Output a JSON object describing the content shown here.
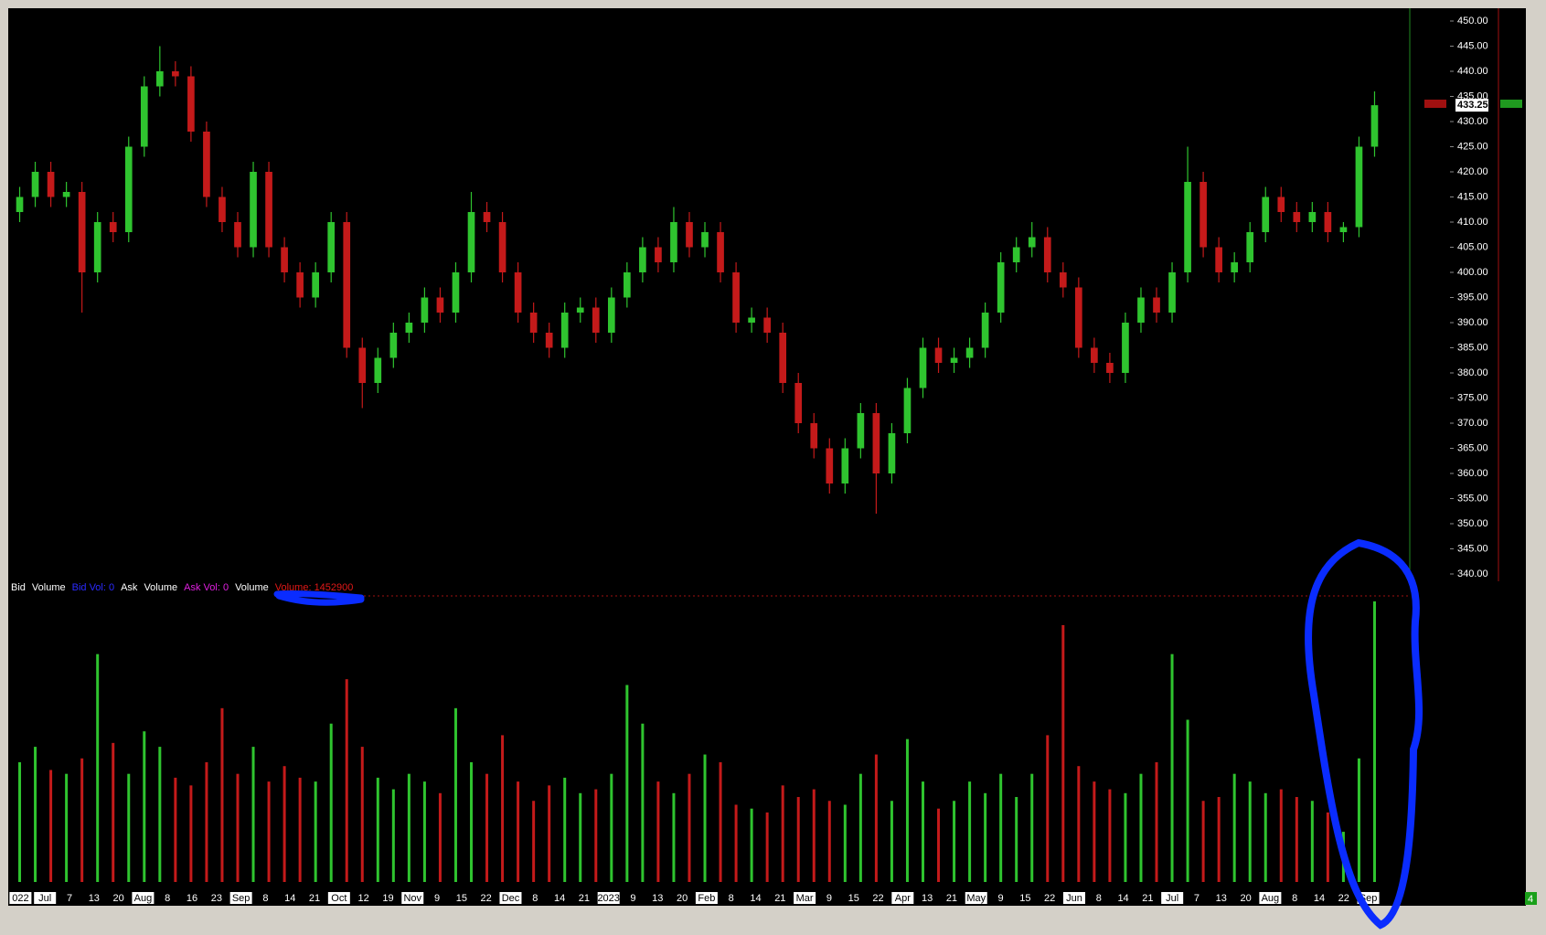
{
  "chart_data": {
    "type": "candlestick",
    "up_color": "#2fc42f",
    "down_color": "#c41a1a",
    "ylim": [
      340,
      450
    ],
    "yticks": [
      {
        "value": 340,
        "label": "340.00"
      },
      {
        "value": 345,
        "label": "345.00"
      },
      {
        "value": 350,
        "label": "350.00"
      },
      {
        "value": 355,
        "label": "355.00"
      },
      {
        "value": 360,
        "label": "360.00"
      },
      {
        "value": 365,
        "label": "365.00"
      },
      {
        "value": 370,
        "label": "370.00"
      },
      {
        "value": 375,
        "label": "375.00"
      },
      {
        "value": 380,
        "label": "380.00"
      },
      {
        "value": 385,
        "label": "385.00"
      },
      {
        "value": 390,
        "label": "390.00"
      },
      {
        "value": 395,
        "label": "395.00"
      },
      {
        "value": 400,
        "label": "400.00"
      },
      {
        "value": 405,
        "label": "405.00"
      },
      {
        "value": 410,
        "label": "410.00"
      },
      {
        "value": 415,
        "label": "415.00"
      },
      {
        "value": 420,
        "label": "420.00"
      },
      {
        "value": 425,
        "label": "425.00"
      },
      {
        "value": 430,
        "label": "430.00"
      },
      {
        "value": 435,
        "label": "435.00"
      },
      {
        "value": 440,
        "label": "440.00"
      },
      {
        "value": 445,
        "label": "445.00"
      },
      {
        "value": 450,
        "label": "450.00"
      }
    ],
    "last_price": 433.25,
    "xticklabels": [
      "022",
      "Jul",
      "7",
      "13",
      "20",
      "Aug",
      "8",
      "16",
      "23",
      "Sep",
      "8",
      "14",
      "21",
      "Oct",
      "12",
      "19",
      "Nov",
      "9",
      "15",
      "22",
      "Dec",
      "8",
      "14",
      "21",
      "2023",
      "9",
      "13",
      "20",
      "Feb",
      "8",
      "14",
      "21",
      "Mar",
      "9",
      "15",
      "22",
      "Apr",
      "13",
      "21",
      "May",
      "9",
      "15",
      "22",
      "Jun",
      "8",
      "14",
      "21",
      "Jul",
      "7",
      "13",
      "20",
      "Aug",
      "8",
      "14",
      "22",
      "Sep"
    ],
    "open": [
      412,
      415,
      420,
      415,
      416,
      400,
      410,
      408,
      425,
      437,
      440,
      439,
      428,
      415,
      410,
      405,
      420,
      405,
      400,
      395,
      400,
      410,
      385,
      378,
      383,
      388,
      390,
      395,
      392,
      400,
      412,
      410,
      400,
      392,
      388,
      385,
      392,
      393,
      388,
      395,
      400,
      405,
      402,
      410,
      405,
      408,
      400,
      390,
      391,
      388,
      378,
      370,
      365,
      358,
      365,
      372,
      360,
      368,
      377,
      385,
      382,
      383,
      385,
      392,
      402,
      405,
      407,
      400,
      397,
      385,
      382,
      380,
      390,
      395,
      392,
      400,
      418,
      405,
      400,
      402,
      408,
      415,
      412,
      410,
      412,
      408,
      409,
      425
    ],
    "high": [
      417,
      422,
      422,
      418,
      418,
      412,
      412,
      427,
      439,
      445,
      442,
      441,
      430,
      417,
      412,
      422,
      422,
      407,
      402,
      402,
      412,
      412,
      387,
      385,
      390,
      392,
      397,
      397,
      402,
      416,
      414,
      412,
      402,
      394,
      390,
      394,
      395,
      395,
      397,
      402,
      407,
      407,
      413,
      412,
      410,
      410,
      402,
      393,
      393,
      390,
      380,
      372,
      367,
      367,
      374,
      374,
      370,
      379,
      387,
      387,
      385,
      387,
      394,
      404,
      407,
      410,
      409,
      402,
      399,
      387,
      384,
      392,
      397,
      397,
      402,
      425,
      420,
      407,
      404,
      410,
      417,
      417,
      414,
      414,
      414,
      410,
      427,
      436
    ],
    "low": [
      410,
      413,
      413,
      413,
      392,
      398,
      406,
      406,
      423,
      435,
      437,
      426,
      413,
      408,
      403,
      403,
      403,
      398,
      393,
      393,
      398,
      383,
      373,
      376,
      381,
      386,
      388,
      390,
      390,
      398,
      408,
      398,
      390,
      386,
      383,
      383,
      390,
      386,
      386,
      393,
      398,
      400,
      400,
      403,
      403,
      398,
      388,
      388,
      386,
      376,
      368,
      363,
      356,
      356,
      363,
      352,
      358,
      366,
      375,
      380,
      380,
      381,
      383,
      390,
      400,
      403,
      398,
      395,
      383,
      380,
      378,
      378,
      388,
      390,
      390,
      398,
      403,
      398,
      398,
      400,
      406,
      410,
      408,
      408,
      406,
      406,
      407,
      423
    ],
    "close": [
      415,
      420,
      415,
      416,
      400,
      410,
      408,
      425,
      437,
      440,
      439,
      428,
      415,
      410,
      405,
      420,
      405,
      400,
      395,
      400,
      410,
      385,
      378,
      383,
      388,
      390,
      395,
      392,
      400,
      412,
      410,
      400,
      392,
      388,
      385,
      392,
      393,
      388,
      395,
      400,
      405,
      402,
      410,
      405,
      408,
      400,
      390,
      391,
      388,
      378,
      370,
      365,
      358,
      365,
      372,
      360,
      368,
      377,
      385,
      382,
      383,
      385,
      392,
      402,
      405,
      407,
      400,
      397,
      385,
      382,
      380,
      390,
      395,
      392,
      400,
      418,
      405,
      400,
      402,
      408,
      415,
      412,
      410,
      412,
      408,
      409,
      425,
      433.25
    ],
    "volume": [
      620000,
      700000,
      580000,
      560000,
      640000,
      1180000,
      720000,
      560000,
      780000,
      700000,
      540000,
      500000,
      620000,
      900000,
      560000,
      700000,
      520000,
      600000,
      540000,
      520000,
      820000,
      1050000,
      700000,
      540000,
      480000,
      560000,
      520000,
      460000,
      900000,
      620000,
      560000,
      760000,
      520000,
      420000,
      500000,
      540000,
      460000,
      480000,
      560000,
      1020000,
      820000,
      520000,
      460000,
      560000,
      660000,
      620000,
      400000,
      380000,
      360000,
      500000,
      440000,
      480000,
      420000,
      400000,
      560000,
      660000,
      420000,
      740000,
      520000,
      380000,
      420000,
      520000,
      460000,
      560000,
      440000,
      560000,
      760000,
      1330000,
      600000,
      520000,
      480000,
      460000,
      560000,
      620000,
      1180000,
      840000,
      420000,
      440000,
      560000,
      520000,
      460000,
      480000,
      440000,
      420000,
      360000,
      260000,
      640000,
      1452900
    ],
    "legend": [
      {
        "text": "Bid",
        "color": "#ffffff"
      },
      {
        "text": "Volume",
        "color": "#ffffff"
      },
      {
        "text": "Bid Vol: 0",
        "color": "#2a2aff"
      },
      {
        "text": "Ask",
        "color": "#ffffff"
      },
      {
        "text": "Volume",
        "color": "#ffffff"
      },
      {
        "text": "Ask Vol: 0",
        "color": "#e020e0"
      },
      {
        "text": "Volume",
        "color": "#ffffff"
      },
      {
        "text": "Volume: 1452900",
        "color": "#e01818"
      }
    ],
    "panel_badge": "4"
  }
}
